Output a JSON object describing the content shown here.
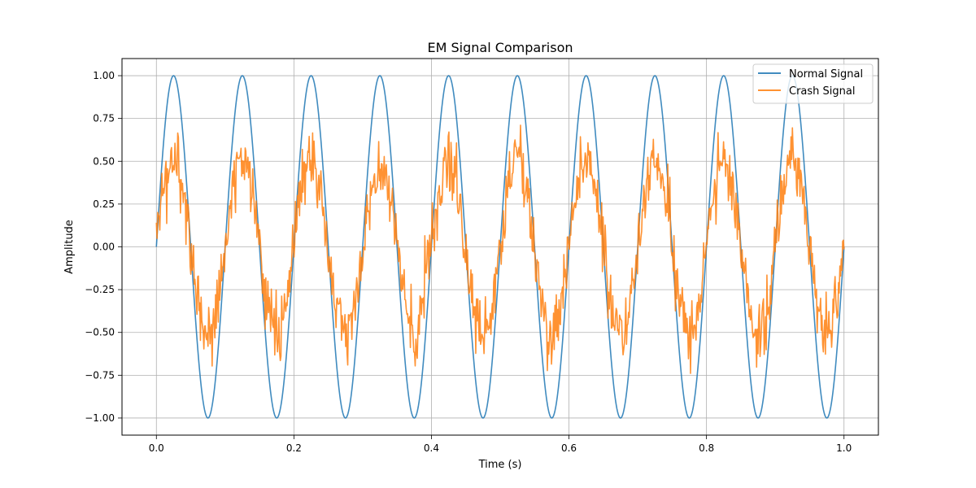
{
  "chart_data": {
    "type": "line",
    "title": "EM Signal Comparison",
    "xlabel": "Time (s)",
    "ylabel": "Amplitude",
    "xlim": [
      -0.05,
      1.05
    ],
    "ylim": [
      -1.1,
      1.1
    ],
    "xticks": [
      0.0,
      0.2,
      0.4,
      0.6,
      0.8,
      1.0
    ],
    "xtick_labels": [
      "0.0",
      "0.2",
      "0.4",
      "0.6",
      "0.8",
      "1.0"
    ],
    "yticks": [
      -1.0,
      -0.75,
      -0.5,
      -0.25,
      0.0,
      0.25,
      0.5,
      0.75,
      1.0
    ],
    "ytick_labels": [
      "−1.00",
      "−0.75",
      "−0.50",
      "−0.25",
      "0.00",
      "0.25",
      "0.50",
      "0.75",
      "1.00"
    ],
    "grid": true,
    "legend_position": "top-right",
    "series": [
      {
        "name": "Normal Signal",
        "color": "#1f77b4",
        "function": "sin(2*pi*10*t)",
        "frequency_hz": 10,
        "amplitude": 1.0,
        "t_range": [
          0,
          1
        ]
      },
      {
        "name": "Crash Signal",
        "color": "#ff7f0e",
        "function": "0.5*sin(2*pi*10*t) + noise",
        "frequency_hz": 10,
        "amplitude": 0.5,
        "noise_std": 0.1,
        "t_range": [
          0,
          1
        ]
      }
    ]
  }
}
